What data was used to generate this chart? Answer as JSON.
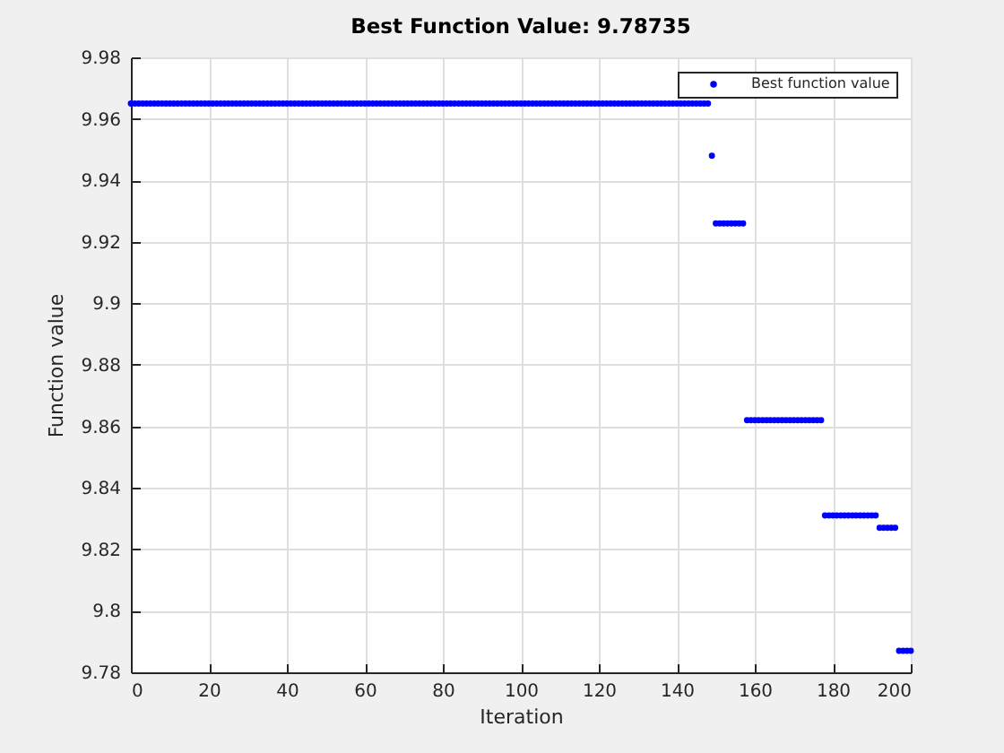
{
  "chart_data": {
    "type": "scatter",
    "title": "Best Function Value: 9.78735",
    "xlabel": "Iteration",
    "ylabel": "Function value",
    "x": [
      0,
      1,
      2,
      3,
      4,
      5,
      6,
      7,
      8,
      9,
      10,
      11,
      12,
      13,
      14,
      15,
      16,
      17,
      18,
      19,
      20,
      21,
      22,
      23,
      24,
      25,
      26,
      27,
      28,
      29,
      30,
      31,
      32,
      33,
      34,
      35,
      36,
      37,
      38,
      39,
      40,
      41,
      42,
      43,
      44,
      45,
      46,
      47,
      48,
      49,
      50,
      51,
      52,
      53,
      54,
      55,
      56,
      57,
      58,
      59,
      60,
      61,
      62,
      63,
      64,
      65,
      66,
      67,
      68,
      69,
      70,
      71,
      72,
      73,
      74,
      75,
      76,
      77,
      78,
      79,
      80,
      81,
      82,
      83,
      84,
      85,
      86,
      87,
      88,
      89,
      90,
      91,
      92,
      93,
      94,
      95,
      96,
      97,
      98,
      99,
      100,
      101,
      102,
      103,
      104,
      105,
      106,
      107,
      108,
      109,
      110,
      111,
      112,
      113,
      114,
      115,
      116,
      117,
      118,
      119,
      120,
      121,
      122,
      123,
      124,
      125,
      126,
      127,
      128,
      129,
      130,
      131,
      132,
      133,
      134,
      135,
      136,
      137,
      138,
      139,
      140,
      141,
      142,
      143,
      144,
      145,
      146,
      147,
      148,
      149,
      150,
      151,
      152,
      153,
      154,
      155,
      156,
      157,
      158,
      159,
      160,
      161,
      162,
      163,
      164,
      165,
      166,
      167,
      168,
      169,
      170,
      171,
      172,
      173,
      174,
      175,
      176,
      177,
      178,
      179,
      180,
      181,
      182,
      183,
      184,
      185,
      186,
      187,
      188,
      189,
      190,
      191,
      192,
      193,
      194,
      195,
      196,
      197,
      198,
      199,
      200
    ],
    "series": [
      {
        "name": "Best function value",
        "color": "#0000ff",
        "values": [
          9.965,
          9.965,
          9.965,
          9.965,
          9.965,
          9.965,
          9.965,
          9.965,
          9.965,
          9.965,
          9.965,
          9.965,
          9.965,
          9.965,
          9.965,
          9.965,
          9.965,
          9.965,
          9.965,
          9.965,
          9.965,
          9.965,
          9.965,
          9.965,
          9.965,
          9.965,
          9.965,
          9.965,
          9.965,
          9.965,
          9.965,
          9.965,
          9.965,
          9.965,
          9.965,
          9.965,
          9.965,
          9.965,
          9.965,
          9.965,
          9.965,
          9.965,
          9.965,
          9.965,
          9.965,
          9.965,
          9.965,
          9.965,
          9.965,
          9.965,
          9.965,
          9.965,
          9.965,
          9.965,
          9.965,
          9.965,
          9.965,
          9.965,
          9.965,
          9.965,
          9.965,
          9.965,
          9.965,
          9.965,
          9.965,
          9.965,
          9.965,
          9.965,
          9.965,
          9.965,
          9.965,
          9.965,
          9.965,
          9.965,
          9.965,
          9.965,
          9.965,
          9.965,
          9.965,
          9.965,
          9.965,
          9.965,
          9.965,
          9.965,
          9.965,
          9.965,
          9.965,
          9.965,
          9.965,
          9.965,
          9.965,
          9.965,
          9.965,
          9.965,
          9.965,
          9.965,
          9.965,
          9.965,
          9.965,
          9.965,
          9.965,
          9.965,
          9.965,
          9.965,
          9.965,
          9.965,
          9.965,
          9.965,
          9.965,
          9.965,
          9.965,
          9.965,
          9.965,
          9.965,
          9.965,
          9.965,
          9.965,
          9.965,
          9.965,
          9.965,
          9.965,
          9.965,
          9.965,
          9.965,
          9.965,
          9.965,
          9.965,
          9.965,
          9.965,
          9.965,
          9.965,
          9.965,
          9.965,
          9.965,
          9.965,
          9.965,
          9.965,
          9.965,
          9.965,
          9.965,
          9.965,
          9.965,
          9.965,
          9.965,
          9.965,
          9.965,
          9.965,
          9.965,
          9.965,
          9.948,
          9.926,
          9.926,
          9.926,
          9.926,
          9.926,
          9.926,
          9.926,
          9.926,
          9.862,
          9.862,
          9.862,
          9.862,
          9.862,
          9.862,
          9.862,
          9.862,
          9.862,
          9.862,
          9.862,
          9.862,
          9.862,
          9.862,
          9.862,
          9.862,
          9.862,
          9.862,
          9.862,
          9.862,
          9.831,
          9.831,
          9.831,
          9.831,
          9.831,
          9.831,
          9.831,
          9.831,
          9.831,
          9.831,
          9.831,
          9.831,
          9.831,
          9.831,
          9.827,
          9.827,
          9.827,
          9.827,
          9.827,
          9.787,
          9.787,
          9.787,
          9.787
        ]
      }
    ],
    "xlim": [
      0,
      200
    ],
    "ylim": [
      9.78,
      9.98
    ],
    "xticks": [
      0,
      20,
      40,
      60,
      80,
      100,
      120,
      140,
      160,
      180,
      200
    ],
    "yticks": [
      9.78,
      9.8,
      9.82,
      9.84,
      9.86,
      9.88,
      9.9,
      9.92,
      9.94,
      9.96,
      9.98
    ],
    "grid": true,
    "legend": "top right",
    "marker": "circle"
  }
}
